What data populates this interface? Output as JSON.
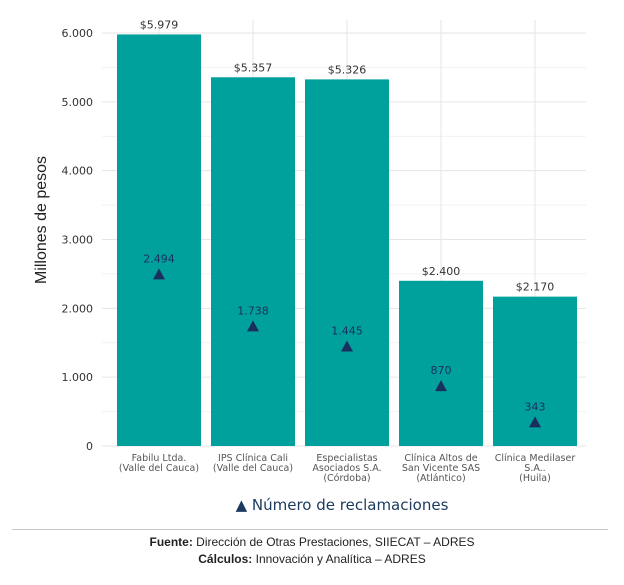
{
  "chart_data": {
    "type": "bar",
    "ylabel": "Millones de pesos",
    "ylim": [
      0,
      6000
    ],
    "yticks": [
      "0",
      "1.000",
      "2.000",
      "3.000",
      "4.000",
      "5.000",
      "6.000"
    ],
    "ytick_values": [
      0,
      1000,
      2000,
      3000,
      4000,
      5000,
      6000
    ],
    "categories": [
      [
        "Fabilu Ltda.",
        "(Valle del Cauca)"
      ],
      [
        "IPS Clínica Cali",
        "(Valle del Cauca)"
      ],
      [
        "Especialistas",
        "Asociados S.A.",
        "(Córdoba)"
      ],
      [
        "Clínica Altos de",
        "San Vicente SAS",
        "(Atlántico)"
      ],
      [
        "Clínica Medilaser",
        "S.A..",
        "(Huila)"
      ]
    ],
    "values": [
      5979,
      5357,
      5326,
      2400,
      2170
    ],
    "value_labels": [
      "$5.979",
      "$5.357",
      "$5.326",
      "$2.400",
      "$2.170"
    ],
    "claims": [
      2494,
      1738,
      1445,
      870,
      343
    ],
    "claims_labels": [
      "2.494",
      "1.738",
      "1.445",
      "870",
      "343"
    ],
    "legend": "▲ Número de reclamaciones",
    "colors": {
      "bar": "#00a19c",
      "marker": "#1b2f5e",
      "grid": "#e6e6e6",
      "text": "#333333"
    }
  },
  "footer": {
    "source_label": "Fuente:",
    "source_text": " Dirección de Otras Prestaciones, SIIECAT – ADRES",
    "calc_label": "Cálculos:",
    "calc_text": " Innovación y Analítica – ADRES"
  }
}
